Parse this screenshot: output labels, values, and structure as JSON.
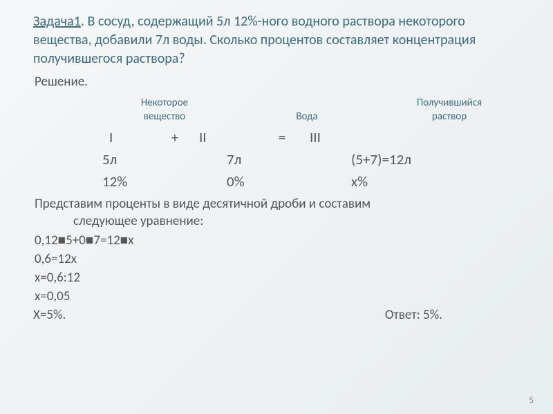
{
  "title": {
    "prefix": "Задача1",
    "rest": ". В сосуд, содержащий 5л 12%-ного водного раствора некоторого вещества, добавили 7л воды. Сколько процентов составляет концентрация получившегося раствора?"
  },
  "solution_label": "Решение.",
  "table": {
    "header1": {
      "c1": "Некоторое",
      "c2": "",
      "c3": "Получившийся"
    },
    "header2": {
      "c1": "вещество",
      "c2": "Вода",
      "c3": "раствор"
    },
    "romans": {
      "r1": "I",
      "op1": "+",
      "r2": "II",
      "op2": "=",
      "r3": "III"
    },
    "volumes": {
      "v1": "5л",
      "v2": "7л",
      "v3": "(5+7)=12л"
    },
    "percents": {
      "p1": "12%",
      "p2": "0%",
      "p3": "x%"
    }
  },
  "paragraph": {
    "line1": "Представим проценты в виде десятичной дроби и составим",
    "line2": "следующее уравнение:"
  },
  "calc": {
    "l1_a": "0,12",
    "l1_b": "5+0",
    "l1_c": "7=12",
    "l1_d": "x",
    "l2": "0,6=12x",
    "l3": "x=0,6:12",
    "l4": "x=0,05",
    "l5": "X=5%."
  },
  "answer": "Ответ: 5%.",
  "page": "5",
  "colors": {
    "heading": "#3e6b7d",
    "body": "#555555",
    "bg_light": "#f5f7f8",
    "bg_dark": "#e8edef"
  },
  "bullet": "■"
}
